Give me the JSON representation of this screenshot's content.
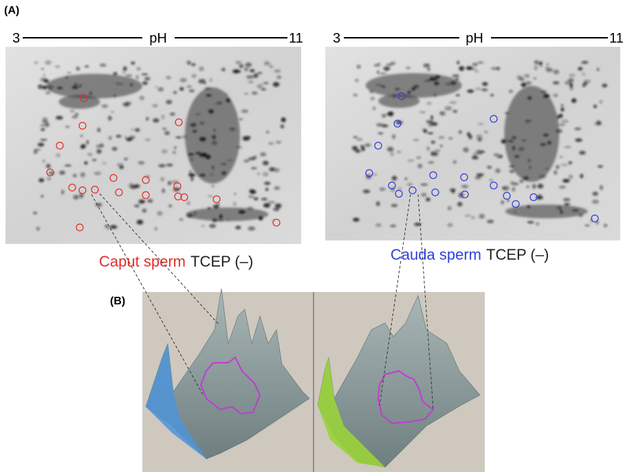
{
  "panel_a": {
    "label": "(A)",
    "gels": [
      {
        "axis_start": "3",
        "axis_title": "pH",
        "axis_end": "11",
        "caption_sample": "Caput sperm",
        "caption_condition": "TCEP (–)"
      },
      {
        "axis_start": "3",
        "axis_title": "pH",
        "axis_end": "11",
        "caption_sample": "Cauda sperm",
        "caption_condition": "TCEP (–)"
      }
    ]
  },
  "panel_b": {
    "label": "(B)"
  }
}
